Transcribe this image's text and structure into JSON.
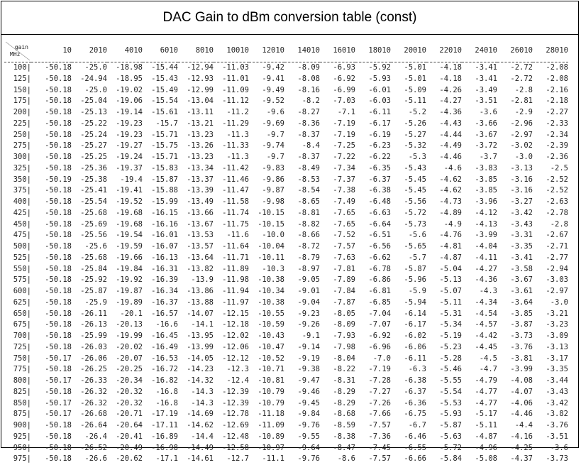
{
  "title": "DAC Gain to dBm conversion table (const)",
  "corner": {
    "gain": "gain",
    "mhz": "MHz"
  },
  "columns": [
    "10",
    "2010",
    "4010",
    "6010",
    "8010",
    "10010",
    "12010",
    "14010",
    "16010",
    "18010",
    "20010",
    "22010",
    "24010",
    "26010",
    "28010"
  ],
  "rows": [
    {
      "mhz": "100|",
      "v": [
        "-50.18",
        "-25.0",
        "-18.98",
        "-15.44",
        "-12.94",
        "-11.03",
        "-9.42",
        "-8.09",
        "-6.93",
        "-5.92",
        "-5.01",
        "-4.18",
        "-3.41",
        "-2.72",
        "-2.08"
      ]
    },
    {
      "mhz": "125|",
      "v": [
        "-50.18",
        "-24.94",
        "-18.95",
        "-15.43",
        "-12.93",
        "-11.01",
        "-9.41",
        "-8.08",
        "-6.92",
        "-5.93",
        "-5.01",
        "-4.18",
        "-3.41",
        "-2.72",
        "-2.08"
      ]
    },
    {
      "mhz": "150|",
      "v": [
        "-50.18",
        "-25.0",
        "-19.02",
        "-15.49",
        "-12.99",
        "-11.09",
        "-9.49",
        "-8.16",
        "-6.99",
        "-6.01",
        "-5.09",
        "-4.26",
        "-3.49",
        "-2.8",
        "-2.16"
      ]
    },
    {
      "mhz": "175|",
      "v": [
        "-50.18",
        "-25.04",
        "-19.06",
        "-15.54",
        "-13.04",
        "-11.12",
        "-9.52",
        "-8.2",
        "-7.03",
        "-6.03",
        "-5.11",
        "-4.27",
        "-3.51",
        "-2.81",
        "-2.18"
      ]
    },
    {
      "mhz": "200|",
      "v": [
        "-50.18",
        "-25.13",
        "-19.14",
        "-15.61",
        "-13.11",
        "-11.2",
        "-9.6",
        "-8.27",
        "-7.1",
        "-6.11",
        "-5.2",
        "-4.36",
        "-3.6",
        "-2.9",
        "-2.27"
      ]
    },
    {
      "mhz": "225|",
      "v": [
        "-50.18",
        "-25.22",
        "-19.23",
        "-15.7",
        "-13.21",
        "-11.29",
        "-9.69",
        "-8.36",
        "-7.19",
        "-6.17",
        "-5.26",
        "-4.43",
        "-3.66",
        "-2.96",
        "-2.33"
      ]
    },
    {
      "mhz": "250|",
      "v": [
        "-50.18",
        "-25.24",
        "-19.23",
        "-15.71",
        "-13.23",
        "-11.3",
        "-9.7",
        "-8.37",
        "-7.19",
        "-6.19",
        "-5.27",
        "-4.44",
        "-3.67",
        "-2.97",
        "-2.34"
      ]
    },
    {
      "mhz": "275|",
      "v": [
        "-50.18",
        "-25.27",
        "-19.27",
        "-15.75",
        "-13.26",
        "-11.33",
        "-9.74",
        "-8.4",
        "-7.25",
        "-6.23",
        "-5.32",
        "-4.49",
        "-3.72",
        "-3.02",
        "-2.39"
      ]
    },
    {
      "mhz": "300|",
      "v": [
        "-50.18",
        "-25.25",
        "-19.24",
        "-15.71",
        "-13.23",
        "-11.3",
        "-9.7",
        "-8.37",
        "-7.22",
        "-6.22",
        "-5.3",
        "-4.46",
        "-3.7",
        "-3.0",
        "-2.36"
      ]
    },
    {
      "mhz": "325|",
      "v": [
        "-50.18",
        "-25.36",
        "-19.37",
        "-15.83",
        "-13.34",
        "-11.42",
        "-9.83",
        "-8.49",
        "-7.34",
        "-6.35",
        "-5.43",
        "-4.6",
        "-3.83",
        "-3.13",
        "-2.5"
      ]
    },
    {
      "mhz": "350|",
      "v": [
        "-50.19",
        "-25.38",
        "-19.4",
        "-15.87",
        "-13.37",
        "-11.46",
        "-9.86",
        "-8.53",
        "-7.37",
        "-6.37",
        "-5.45",
        "-4.62",
        "-3.85",
        "-3.16",
        "-2.52"
      ]
    },
    {
      "mhz": "375|",
      "v": [
        "-50.18",
        "-25.41",
        "-19.41",
        "-15.88",
        "-13.39",
        "-11.47",
        "-9.87",
        "-8.54",
        "-7.38",
        "-6.38",
        "-5.45",
        "-4.62",
        "-3.85",
        "-3.16",
        "-2.52"
      ]
    },
    {
      "mhz": "400|",
      "v": [
        "-50.18",
        "-25.54",
        "-19.52",
        "-15.99",
        "-13.49",
        "-11.58",
        "-9.98",
        "-8.65",
        "-7.49",
        "-6.48",
        "-5.56",
        "-4.73",
        "-3.96",
        "-3.27",
        "-2.63"
      ]
    },
    {
      "mhz": "425|",
      "v": [
        "-50.18",
        "-25.68",
        "-19.68",
        "-16.15",
        "-13.66",
        "-11.74",
        "-10.15",
        "-8.81",
        "-7.65",
        "-6.63",
        "-5.72",
        "-4.89",
        "-4.12",
        "-3.42",
        "-2.78"
      ]
    },
    {
      "mhz": "450|",
      "v": [
        "-50.18",
        "-25.69",
        "-19.68",
        "-16.16",
        "-13.67",
        "-11.75",
        "-10.15",
        "-8.82",
        "-7.65",
        "-6.64",
        "-5.73",
        "-4.9",
        "-4.13",
        "-3.43",
        "-2.8"
      ]
    },
    {
      "mhz": "475|",
      "v": [
        "-50.18",
        "-25.56",
        "-19.54",
        "-16.01",
        "-13.53",
        "-11.6",
        "-10.0",
        "-8.66",
        "-7.52",
        "-6.51",
        "-5.6",
        "-4.76",
        "-3.99",
        "-3.31",
        "-2.67"
      ]
    },
    {
      "mhz": "500|",
      "v": [
        "-50.18",
        "-25.6",
        "-19.59",
        "-16.07",
        "-13.57",
        "-11.64",
        "-10.04",
        "-8.72",
        "-7.57",
        "-6.56",
        "-5.65",
        "-4.81",
        "-4.04",
        "-3.35",
        "-2.71"
      ]
    },
    {
      "mhz": "525|",
      "v": [
        "-50.18",
        "-25.68",
        "-19.66",
        "-16.13",
        "-13.64",
        "-11.71",
        "-10.11",
        "-8.79",
        "-7.63",
        "-6.62",
        "-5.7",
        "-4.87",
        "-4.11",
        "-3.41",
        "-2.77"
      ]
    },
    {
      "mhz": "550|",
      "v": [
        "-50.18",
        "-25.84",
        "-19.84",
        "-16.31",
        "-13.82",
        "-11.89",
        "-10.3",
        "-8.97",
        "-7.81",
        "-6.78",
        "-5.87",
        "-5.04",
        "-4.27",
        "-3.58",
        "-2.94"
      ]
    },
    {
      "mhz": "575|",
      "v": [
        "-50.18",
        "-25.92",
        "-19.92",
        "-16.39",
        "-13.9",
        "-11.98",
        "-10.38",
        "-9.05",
        "-7.89",
        "-6.86",
        "-5.96",
        "-5.13",
        "-4.36",
        "-3.67",
        "-3.03"
      ]
    },
    {
      "mhz": "600|",
      "v": [
        "-50.18",
        "-25.87",
        "-19.87",
        "-16.34",
        "-13.86",
        "-11.94",
        "-10.34",
        "-9.01",
        "-7.84",
        "-6.81",
        "-5.9",
        "-5.07",
        "-4.3",
        "-3.61",
        "-2.97"
      ]
    },
    {
      "mhz": "625|",
      "v": [
        "-50.18",
        "-25.9",
        "-19.89",
        "-16.37",
        "-13.88",
        "-11.97",
        "-10.38",
        "-9.04",
        "-7.87",
        "-6.85",
        "-5.94",
        "-5.11",
        "-4.34",
        "-3.64",
        "-3.0"
      ]
    },
    {
      "mhz": "650|",
      "v": [
        "-50.18",
        "-26.11",
        "-20.1",
        "-16.57",
        "-14.07",
        "-12.15",
        "-10.55",
        "-9.23",
        "-8.05",
        "-7.04",
        "-6.14",
        "-5.31",
        "-4.54",
        "-3.85",
        "-3.21"
      ]
    },
    {
      "mhz": "675|",
      "v": [
        "-50.18",
        "-26.13",
        "-20.13",
        "-16.6",
        "-14.1",
        "-12.18",
        "-10.59",
        "-9.26",
        "-8.09",
        "-7.07",
        "-6.17",
        "-5.34",
        "-4.57",
        "-3.87",
        "-3.23"
      ]
    },
    {
      "mhz": "700|",
      "v": [
        "-50.18",
        "-25.99",
        "-19.99",
        "-16.45",
        "-13.95",
        "-12.02",
        "-10.43",
        "-9.1",
        "-7.93",
        "-6.92",
        "-6.02",
        "-5.19",
        "-4.42",
        "-3.73",
        "-3.09"
      ]
    },
    {
      "mhz": "725|",
      "v": [
        "-50.18",
        "-26.03",
        "-20.02",
        "-16.49",
        "-13.99",
        "-12.06",
        "-10.47",
        "-9.14",
        "-7.98",
        "-6.96",
        "-6.06",
        "-5.23",
        "-4.45",
        "-3.76",
        "-3.13"
      ]
    },
    {
      "mhz": "750|",
      "v": [
        "-50.17",
        "-26.06",
        "-20.07",
        "-16.53",
        "-14.05",
        "-12.12",
        "-10.52",
        "-9.19",
        "-8.04",
        "-7.0",
        "-6.11",
        "-5.28",
        "-4.5",
        "-3.81",
        "-3.17"
      ]
    },
    {
      "mhz": "775|",
      "v": [
        "-50.18",
        "-26.25",
        "-20.25",
        "-16.72",
        "-14.23",
        "-12.3",
        "-10.71",
        "-9.38",
        "-8.22",
        "-7.19",
        "-6.3",
        "-5.46",
        "-4.7",
        "-3.99",
        "-3.35"
      ]
    },
    {
      "mhz": "800|",
      "v": [
        "-50.17",
        "-26.33",
        "-20.34",
        "-16.82",
        "-14.32",
        "-12.4",
        "-10.81",
        "-9.47",
        "-8.31",
        "-7.28",
        "-6.38",
        "-5.55",
        "-4.79",
        "-4.08",
        "-3.44"
      ]
    },
    {
      "mhz": "825|",
      "v": [
        "-50.18",
        "-26.32",
        "-20.32",
        "-16.8",
        "-14.3",
        "-12.39",
        "-10.79",
        "-9.46",
        "-8.29",
        "-7.27",
        "-6.37",
        "-5.54",
        "-4.77",
        "-4.07",
        "-3.43"
      ]
    },
    {
      "mhz": "850|",
      "v": [
        "-50.17",
        "-26.32",
        "-20.32",
        "-16.8",
        "-14.3",
        "-12.39",
        "-10.79",
        "-9.45",
        "-8.29",
        "-7.26",
        "-6.36",
        "-5.53",
        "-4.77",
        "-4.06",
        "-3.42"
      ]
    },
    {
      "mhz": "875|",
      "v": [
        "-50.17",
        "-26.68",
        "-20.71",
        "-17.19",
        "-14.69",
        "-12.78",
        "-11.18",
        "-9.84",
        "-8.68",
        "-7.66",
        "-6.75",
        "-5.93",
        "-5.17",
        "-4.46",
        "-3.82"
      ]
    },
    {
      "mhz": "900|",
      "v": [
        "-50.18",
        "-26.64",
        "-20.64",
        "-17.11",
        "-14.62",
        "-12.69",
        "-11.09",
        "-9.76",
        "-8.59",
        "-7.57",
        "-6.7",
        "-5.87",
        "-5.11",
        "-4.4",
        "-3.76"
      ]
    },
    {
      "mhz": "925|",
      "v": [
        "-50.18",
        "-26.4",
        "-20.41",
        "-16.89",
        "-14.4",
        "-12.48",
        "-10.89",
        "-9.55",
        "-8.38",
        "-7.36",
        "-6.46",
        "-5.63",
        "-4.87",
        "-4.16",
        "-3.51"
      ]
    },
    {
      "mhz": "950|",
      "v": [
        "-50.18",
        "-26.52",
        "-20.49",
        "-16.98",
        "-14.49",
        "-12.58",
        "-10.97",
        "-9.64",
        "-8.47",
        "-7.45",
        "-6.55",
        "-5.72",
        "-4.96",
        "-4.25",
        "-3.6"
      ]
    },
    {
      "mhz": "975|",
      "v": [
        "-50.18",
        "-26.6",
        "-20.62",
        "-17.1",
        "-14.61",
        "-12.7",
        "-11.1",
        "-9.76",
        "-8.6",
        "-7.57",
        "-6.66",
        "-5.84",
        "-5.08",
        "-4.37",
        "-3.73"
      ]
    }
  ]
}
